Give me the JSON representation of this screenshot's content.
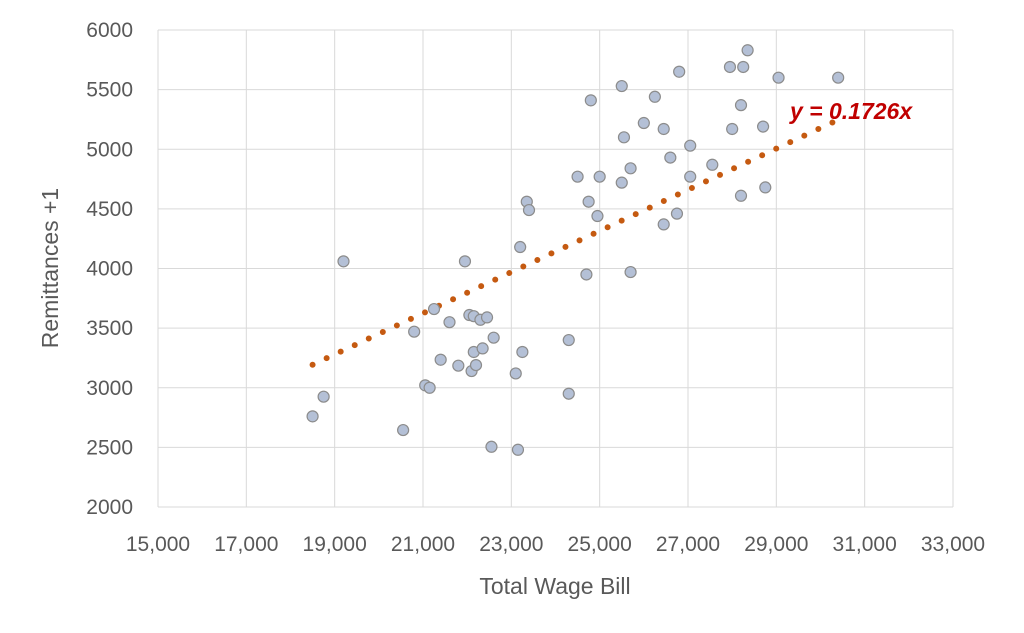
{
  "chart_data": {
    "type": "scatter",
    "xlabel": "Total Wage Bill",
    "ylabel": "Remittances +1",
    "xlim": [
      15000,
      33000
    ],
    "ylim": [
      2000,
      6000
    ],
    "x_ticks": [
      "15,000",
      "17,000",
      "19,000",
      "21,000",
      "23,000",
      "25,000",
      "27,000",
      "29,000",
      "31,000",
      "33,000"
    ],
    "y_ticks": [
      "2000",
      "2500",
      "3000",
      "3500",
      "4000",
      "4500",
      "5000",
      "5500",
      "6000"
    ],
    "grid": true,
    "marker_fill": "#b4c0d6",
    "marker_edge": "#8c8c8c",
    "trendline": {
      "equation": "y = 0.1726x",
      "slope": 0.1726,
      "x_range": [
        18500,
        30300
      ],
      "color": "#c55a11",
      "label_color": "#c00000"
    },
    "points": [
      [
        18500,
        2760
      ],
      [
        18750,
        2925
      ],
      [
        19200,
        4060
      ],
      [
        20550,
        2645
      ],
      [
        20800,
        3470
      ],
      [
        21050,
        3020
      ],
      [
        21150,
        3000
      ],
      [
        21250,
        3660
      ],
      [
        21400,
        3235
      ],
      [
        21600,
        3550
      ],
      [
        21800,
        3185
      ],
      [
        21950,
        4060
      ],
      [
        22050,
        3610
      ],
      [
        22100,
        3140
      ],
      [
        22150,
        3300
      ],
      [
        22200,
        3190
      ],
      [
        22150,
        3600
      ],
      [
        22300,
        3570
      ],
      [
        22350,
        3330
      ],
      [
        22450,
        3590
      ],
      [
        22600,
        3420
      ],
      [
        22550,
        2505
      ],
      [
        23100,
        3120
      ],
      [
        23150,
        2480
      ],
      [
        23200,
        4180
      ],
      [
        23250,
        3300
      ],
      [
        23350,
        4560
      ],
      [
        23400,
        4490
      ],
      [
        24300,
        3400
      ],
      [
        24300,
        2950
      ],
      [
        24500,
        4770
      ],
      [
        24700,
        3950
      ],
      [
        24750,
        4560
      ],
      [
        24800,
        5410
      ],
      [
        24950,
        4440
      ],
      [
        25000,
        4770
      ],
      [
        25500,
        5530
      ],
      [
        25500,
        4720
      ],
      [
        25550,
        5100
      ],
      [
        25700,
        4840
      ],
      [
        25700,
        3970
      ],
      [
        26000,
        5220
      ],
      [
        26250,
        5440
      ],
      [
        26450,
        5170
      ],
      [
        26450,
        4370
      ],
      [
        26600,
        4930
      ],
      [
        26750,
        4460
      ],
      [
        26800,
        5650
      ],
      [
        27050,
        5030
      ],
      [
        27050,
        4770
      ],
      [
        27550,
        4870
      ],
      [
        27950,
        5690
      ],
      [
        28000,
        5170
      ],
      [
        28200,
        5370
      ],
      [
        28200,
        4610
      ],
      [
        28250,
        5690
      ],
      [
        28350,
        5830
      ],
      [
        28700,
        5190
      ],
      [
        28750,
        4680
      ],
      [
        29050,
        5600
      ],
      [
        30400,
        5600
      ]
    ]
  }
}
